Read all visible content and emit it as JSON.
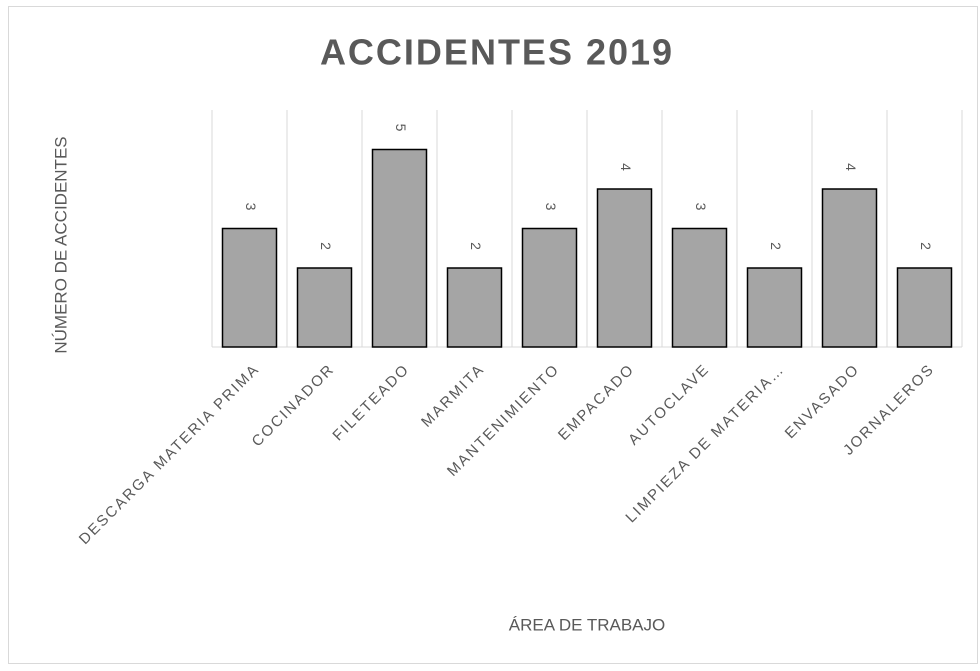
{
  "chart_data": {
    "type": "bar",
    "title": "ACCIDENTES 2019",
    "x_label": "ÁREA DE TRABAJO",
    "y_label": "NÚMERO DE ACCIDENTES",
    "categories": [
      "DESCARGA MATERIA PRIMA",
      "COCINADOR",
      "FILETEADO",
      "MARMITA",
      "MANTENIMIENTO",
      "EMPACADO",
      "AUTOCLAVE",
      "LIMPIEZA DE MATERIA…",
      "ENVASADO",
      "JORNALEROS"
    ],
    "values": [
      3,
      2,
      5,
      2,
      3,
      4,
      3,
      2,
      4,
      2
    ],
    "color": "#a5a5a5",
    "ylim": [
      0,
      6
    ]
  }
}
